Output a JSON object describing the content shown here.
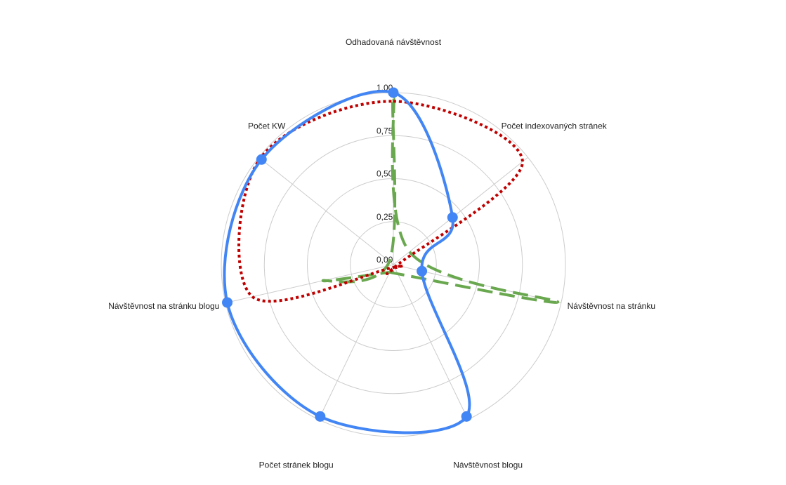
{
  "chart_data": {
    "type": "radar",
    "axes": [
      "Odhadovaná návštěvnost",
      "Počet indexovaných stránek",
      "Návštěvnost na stránku",
      "Návštěvnost blogu",
      "Počet stránek blogu",
      "Návštěvnost na stránku blogu",
      "Počet KW"
    ],
    "ticks": [
      "0,00",
      "0,25",
      "0,50",
      "0,75",
      "1,00"
    ],
    "tick_values": [
      0,
      0.25,
      0.5,
      0.75,
      1.0
    ],
    "rlim": [
      0,
      1
    ],
    "grid": true,
    "legend": "none",
    "series": [
      {
        "values": [
          1.0,
          0.44,
          0.17,
          0.98,
          0.98,
          0.99,
          0.98
        ],
        "color": "#4285f4",
        "line_style": "solid",
        "markers": true
      },
      {
        "values": [
          0.95,
          0.96,
          0.02,
          0.02,
          0.02,
          0.84,
          0.99
        ],
        "color": "#c00000",
        "line_style": "dotted",
        "markers": false
      },
      {
        "values": [
          0.97,
          0.12,
          0.98,
          0.06,
          0.05,
          0.42,
          0.03
        ],
        "color": "#6aa84f",
        "line_style": "dashed",
        "markers": false
      }
    ]
  }
}
